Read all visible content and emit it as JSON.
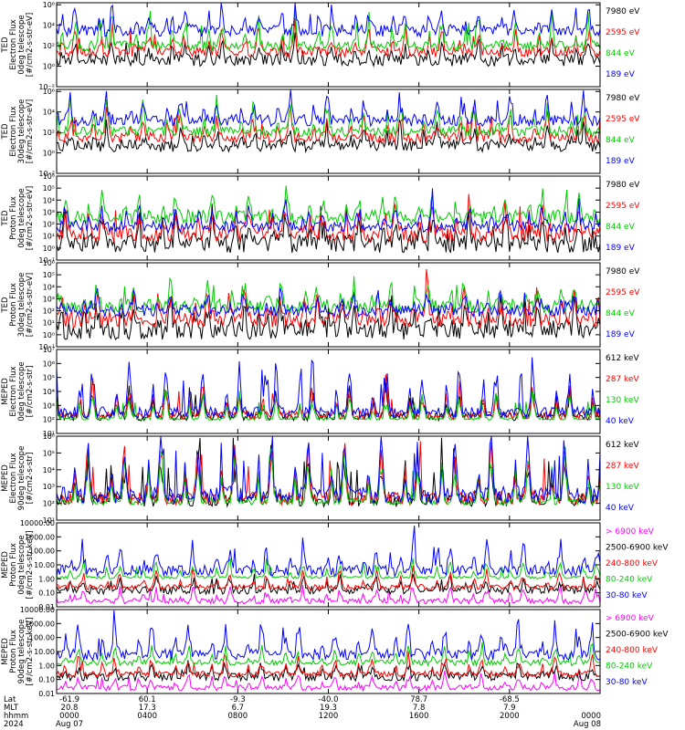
{
  "chart_data": [
    {
      "type": "line",
      "ylabel_lines": [
        "TED",
        "Electron Flux",
        "0deg telescope",
        "[#/cm2-s-str-eV]"
      ],
      "yscale": "log",
      "ytick_labels": [
        "10⁻²",
        "10⁰",
        "10²",
        "10⁴",
        "10⁶"
      ],
      "ytick_exps": [
        -2,
        0,
        2,
        4,
        6
      ],
      "ylim_exp": [
        -2,
        6.2
      ],
      "series": [
        {
          "name": "7980 eV",
          "color": "#000000",
          "base": 0.6,
          "spread": 0.6,
          "spike": 1.5
        },
        {
          "name": "2595 eV",
          "color": "#ff0000",
          "base": 1.4,
          "spread": 0.5,
          "spike": 2.0
        },
        {
          "name": "844 eV",
          "color": "#00cc00",
          "base": 2.0,
          "spread": 0.5,
          "spike": 2.2
        },
        {
          "name": "189 eV",
          "color": "#0000ff",
          "base": 3.5,
          "spread": 0.6,
          "spike": 2.0
        }
      ]
    },
    {
      "type": "line",
      "ylabel_lines": [
        "TED",
        "Electron Flux",
        "30deg telescope",
        "[#/cm2-s-str-eV]"
      ],
      "yscale": "log",
      "ytick_labels": [
        "10⁻²",
        "10⁰",
        "10²",
        "10⁴",
        "10⁶"
      ],
      "ytick_exps": [
        -2,
        0,
        2,
        4,
        6
      ],
      "ylim_exp": [
        -2,
        6.2
      ],
      "series": [
        {
          "name": "7980 eV",
          "color": "#000000",
          "base": 0.7,
          "spread": 0.6,
          "spike": 1.5
        },
        {
          "name": "2595 eV",
          "color": "#ff0000",
          "base": 1.5,
          "spread": 0.5,
          "spike": 2.0
        },
        {
          "name": "844 eV",
          "color": "#00cc00",
          "base": 2.1,
          "spread": 0.5,
          "spike": 2.2
        },
        {
          "name": "189 eV",
          "color": "#0000ff",
          "base": 3.2,
          "spread": 0.6,
          "spike": 2.0
        }
      ]
    },
    {
      "type": "line",
      "ylabel_lines": [
        "TED",
        "Proton Flux",
        "0deg telescope",
        "[#/cm2-s-str-eV]"
      ],
      "yscale": "log",
      "ytick_labels": [
        "10⁻¹",
        "10⁰",
        "10¹",
        "10²",
        "10³",
        "10⁴",
        "10⁵",
        "10⁶"
      ],
      "ytick_exps": [
        -1,
        0,
        1,
        2,
        3,
        4,
        5,
        6
      ],
      "ylim_exp": [
        -1,
        6
      ],
      "series": [
        {
          "name": "7980 eV",
          "color": "#000000",
          "base": 0.4,
          "spread": 0.8,
          "spike": 2.0
        },
        {
          "name": "2595 eV",
          "color": "#ff0000",
          "base": 1.2,
          "spread": 0.7,
          "spike": 2.0
        },
        {
          "name": "844 eV",
          "color": "#00cc00",
          "base": 2.6,
          "spread": 0.6,
          "spike": 1.6
        },
        {
          "name": "189 eV",
          "color": "#0000ff",
          "base": 1.8,
          "spread": 0.5,
          "spike": 1.5
        }
      ]
    },
    {
      "type": "line",
      "ylabel_lines": [
        "TED",
        "Proton Flux",
        "30deg telescope",
        "[#/cm2-s-str-eV]"
      ],
      "yscale": "log",
      "ytick_labels": [
        "10⁻¹",
        "10⁰",
        "10¹",
        "10²",
        "10³",
        "10⁴",
        "10⁵",
        "10⁶"
      ],
      "ytick_exps": [
        -1,
        0,
        1,
        2,
        3,
        4,
        5,
        6
      ],
      "ylim_exp": [
        -1,
        6
      ],
      "series": [
        {
          "name": "7980 eV",
          "color": "#000000",
          "base": 0.4,
          "spread": 0.8,
          "spike": 2.0
        },
        {
          "name": "2595 eV",
          "color": "#ff0000",
          "base": 1.3,
          "spread": 0.7,
          "spike": 2.0
        },
        {
          "name": "844 eV",
          "color": "#00cc00",
          "base": 2.4,
          "spread": 0.6,
          "spike": 1.6
        },
        {
          "name": "189 eV",
          "color": "#0000ff",
          "base": 2.0,
          "spread": 0.5,
          "spike": 1.5
        }
      ]
    },
    {
      "type": "line",
      "ylabel_lines": [
        "MEPED",
        "Electron Flux",
        "0deg telescope",
        "[#/cm2-s-str]"
      ],
      "yscale": "log",
      "ytick_labels": [
        "10¹",
        "10²",
        "10³",
        "10⁴",
        "10⁵",
        "10⁶",
        "10⁷"
      ],
      "ytick_exps": [
        1,
        2,
        3,
        4,
        5,
        6,
        7
      ],
      "ylim_exp": [
        1,
        7
      ],
      "series": [
        {
          "name": "612 keV",
          "color": "#000000",
          "base": 2.2,
          "spread": 0.3,
          "spike": 1.6
        },
        {
          "name": "287 keV",
          "color": "#ff0000",
          "base": 2.3,
          "spread": 0.3,
          "spike": 1.8
        },
        {
          "name": "130 keV",
          "color": "#00cc00",
          "base": 2.05,
          "spread": 0.1,
          "spike": 1.5
        },
        {
          "name": "40 keV",
          "color": "#0000ff",
          "base": 2.5,
          "spread": 0.4,
          "spike": 2.8
        }
      ]
    },
    {
      "type": "line",
      "ylabel_lines": [
        "MEPED",
        "Electron Flux",
        "90deg telescope",
        "[#/cm2-s-str]"
      ],
      "yscale": "log",
      "ytick_labels": [
        "10¹",
        "10²",
        "10³",
        "10⁴",
        "10⁵",
        "10⁶"
      ],
      "ytick_exps": [
        1,
        2,
        3,
        4,
        5,
        6
      ],
      "ylim_exp": [
        1,
        6
      ],
      "series": [
        {
          "name": "612 keV",
          "color": "#000000",
          "base": 2.2,
          "spread": 0.4,
          "spike": 2.5
        },
        {
          "name": "287 keV",
          "color": "#ff0000",
          "base": 2.3,
          "spread": 0.4,
          "spike": 2.6
        },
        {
          "name": "130 keV",
          "color": "#00cc00",
          "base": 2.1,
          "spread": 0.2,
          "spike": 2.5
        },
        {
          "name": "40 keV",
          "color": "#0000ff",
          "base": 2.5,
          "spread": 0.5,
          "spike": 2.8
        }
      ]
    },
    {
      "type": "line",
      "ylabel_lines": [
        "MEPED",
        "Proton Flux",
        "0deg telescope",
        "[#/cm2-s-str-keV]"
      ],
      "yscale": "log",
      "ytick_labels": [
        "0.01",
        "0.10",
        "1.00",
        "10.00",
        "100.00",
        "1000.00",
        "10000.00"
      ],
      "ytick_exps": [
        -2,
        -1,
        0,
        1,
        2,
        3,
        4
      ],
      "ylim_exp": [
        -2,
        4
      ],
      "series": [
        {
          "name": "> 6900 keV",
          "color": "#ff00ff",
          "base": -1.6,
          "spread": 0.2,
          "spike": 0.8
        },
        {
          "name": "2500-6900 keV",
          "color": "#000000",
          "base": -0.8,
          "spread": 0.3,
          "spike": 0.8
        },
        {
          "name": "240-800 keV",
          "color": "#ff0000",
          "base": -0.6,
          "spread": 0.2,
          "spike": 1.0
        },
        {
          "name": "80-240 keV",
          "color": "#00cc00",
          "base": 0.1,
          "spread": 0.1,
          "spike": 1.0
        },
        {
          "name": "30-80 keV",
          "color": "#0000ff",
          "base": 0.6,
          "spread": 0.4,
          "spike": 1.6
        }
      ]
    },
    {
      "type": "line",
      "ylabel_lines": [
        "MEPED",
        "Proton Flux",
        "90deg telescope",
        "[#/cm2-s-str-keV]"
      ],
      "yscale": "log",
      "ytick_labels": [
        "0.01",
        "0.10",
        "1.00",
        "10.00",
        "100.00",
        "1000.00",
        "10000.00"
      ],
      "ytick_exps": [
        -2,
        -1,
        0,
        1,
        2,
        3,
        4
      ],
      "ylim_exp": [
        -2,
        4
      ],
      "series": [
        {
          "name": "> 6900 keV",
          "color": "#ff00ff",
          "base": -1.6,
          "spread": 0.2,
          "spike": 0.8
        },
        {
          "name": "2500-6900 keV",
          "color": "#000000",
          "base": -0.8,
          "spread": 0.3,
          "spike": 0.8
        },
        {
          "name": "240-800 keV",
          "color": "#ff0000",
          "base": -0.6,
          "spread": 0.2,
          "spike": 1.0
        },
        {
          "name": "80-240 keV",
          "color": "#00cc00",
          "base": 0.2,
          "spread": 0.2,
          "spike": 1.0
        },
        {
          "name": "30-80 keV",
          "color": "#0000ff",
          "base": 0.8,
          "spread": 0.4,
          "spike": 1.8
        }
      ]
    }
  ],
  "x_axis": {
    "row_labels": [
      "Lat",
      "MLT",
      "hhmm",
      "2024"
    ],
    "ticks": [
      {
        "hours": 0,
        "lat": "-61.9",
        "mlt": "20.8",
        "hhmm": "0000",
        "date": "Aug 07"
      },
      {
        "hours": 4,
        "lat": "60.1",
        "mlt": "17.3",
        "hhmm": "0400",
        "date": ""
      },
      {
        "hours": 8,
        "lat": "-9.3",
        "mlt": "6.7",
        "hhmm": "0800",
        "date": ""
      },
      {
        "hours": 12,
        "lat": "-40.0",
        "mlt": "19.3",
        "hhmm": "1200",
        "date": ""
      },
      {
        "hours": 16,
        "lat": "78.7",
        "mlt": "7.8",
        "hhmm": "1600",
        "date": ""
      },
      {
        "hours": 20,
        "lat": "-68.5",
        "mlt": "7.9",
        "hhmm": "2000",
        "date": ""
      },
      {
        "hours": 24,
        "lat": "",
        "mlt": "",
        "hhmm": "0000",
        "date": "Aug 08"
      }
    ],
    "xlim_hours": [
      0,
      24
    ]
  }
}
